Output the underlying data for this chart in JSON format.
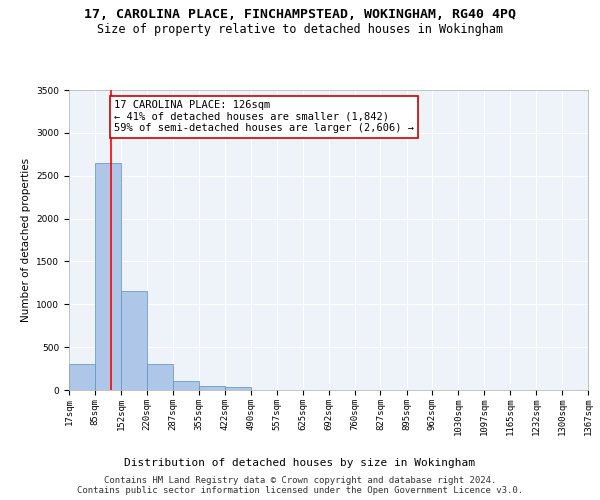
{
  "title1": "17, CAROLINA PLACE, FINCHAMPSTEAD, WOKINGHAM, RG40 4PQ",
  "title2": "Size of property relative to detached houses in Wokingham",
  "xlabel": "Distribution of detached houses by size in Wokingham",
  "ylabel": "Number of detached properties",
  "bin_edges": [
    17,
    85,
    152,
    220,
    287,
    355,
    422,
    490,
    557,
    625,
    692,
    760,
    827,
    895,
    962,
    1030,
    1097,
    1165,
    1232,
    1300,
    1367
  ],
  "bar_heights": [
    300,
    2650,
    1150,
    300,
    100,
    50,
    30,
    0,
    0,
    0,
    0,
    0,
    0,
    0,
    0,
    0,
    0,
    0,
    0,
    0
  ],
  "bar_color": "#aec6e8",
  "bar_edge_color": "#5a8fc3",
  "red_line_x": 126,
  "ylim": [
    0,
    3500
  ],
  "yticks": [
    0,
    500,
    1000,
    1500,
    2000,
    2500,
    3000,
    3500
  ],
  "annotation_text": "17 CAROLINA PLACE: 126sqm\n← 41% of detached houses are smaller (1,842)\n59% of semi-detached houses are larger (2,606) →",
  "annotation_box_color": "#ffffff",
  "annotation_box_edge": "#cc0000",
  "footer1": "Contains HM Land Registry data © Crown copyright and database right 2024.",
  "footer2": "Contains public sector information licensed under the Open Government Licence v3.0.",
  "background_color": "#eef2f9",
  "grid_color": "#ffffff",
  "title1_fontsize": 9.5,
  "title2_fontsize": 8.5,
  "xlabel_fontsize": 8,
  "ylabel_fontsize": 7.5,
  "tick_fontsize": 6.5,
  "annotation_fontsize": 7.5,
  "footer_fontsize": 6.5
}
